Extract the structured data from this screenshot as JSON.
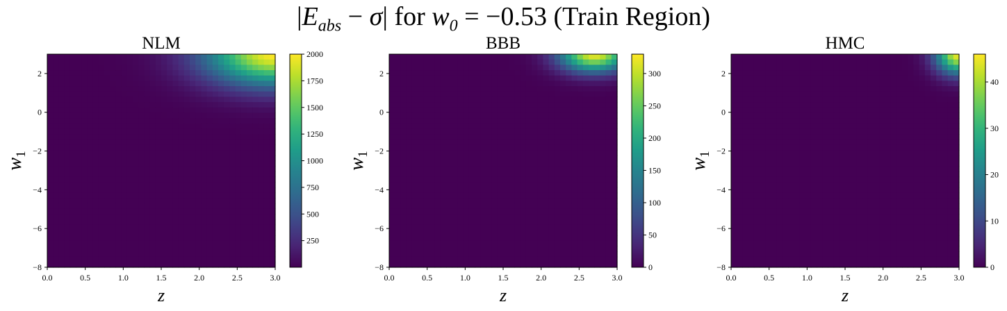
{
  "figure": {
    "title_parts": {
      "bar_left": "|",
      "e_symbol": "E",
      "e_subscript": "abs",
      "minus": " − ",
      "sigma": "σ",
      "bar_right": "|",
      "for_word": " for ",
      "w_symbol": "w",
      "w_subscript": "0",
      "equals_value": " = −0.53 (Train Region)"
    }
  },
  "colormap": "viridis",
  "chart_data": [
    {
      "type": "heatmap",
      "title": "NLM",
      "xlabel": "z",
      "ylabel": "w1",
      "xlim": [
        0.0,
        3.0
      ],
      "ylim": [
        -8,
        3
      ],
      "x_ticks": [
        "0.0",
        "0.5",
        "1.0",
        "1.5",
        "2.0",
        "2.5",
        "3.0"
      ],
      "y_ticks": [
        "−8",
        "−6",
        "−4",
        "−2",
        "0",
        "2"
      ],
      "colorbar": {
        "min": 0,
        "max": 2000,
        "ticks": [
          "250",
          "500",
          "750",
          "1000",
          "1250",
          "1500",
          "1750",
          "2000"
        ]
      },
      "hotspot": {
        "x": 3.0,
        "y": 3.0,
        "peak": 2000,
        "x_extent": 0.9,
        "y_extent": 1.6
      }
    },
    {
      "type": "heatmap",
      "title": "BBB",
      "xlabel": "z",
      "ylabel": "w1",
      "xlim": [
        0.0,
        3.0
      ],
      "ylim": [
        -8,
        3
      ],
      "x_ticks": [
        "0.0",
        "0.5",
        "1.0",
        "1.5",
        "2.0",
        "2.5",
        "3.0"
      ],
      "y_ticks": [
        "−8",
        "−6",
        "−4",
        "−2",
        "0",
        "2"
      ],
      "colorbar": {
        "min": 0,
        "max": 330,
        "ticks": [
          "0",
          "50",
          "100",
          "150",
          "200",
          "250",
          "300"
        ]
      },
      "hotspot": {
        "x": 2.7,
        "y": 3.0,
        "peak": 320,
        "x_extent": 0.45,
        "y_extent": 0.9
      }
    },
    {
      "type": "heatmap",
      "title": "HMC",
      "xlabel": "z",
      "ylabel": "w1",
      "xlim": [
        0.0,
        3.0
      ],
      "ylim": [
        -8,
        3
      ],
      "x_ticks": [
        "0.0",
        "0.5",
        "1.0",
        "1.5",
        "2.0",
        "2.5",
        "3.0"
      ],
      "y_ticks": [
        "−8",
        "−6",
        "−4",
        "−2",
        "0",
        "2"
      ],
      "colorbar": {
        "min": 0,
        "max": 46,
        "ticks": [
          "0",
          "10",
          "20",
          "30",
          "40"
        ]
      },
      "hotspot": {
        "x": 3.0,
        "y": 3.0,
        "peak": 45,
        "x_extent": 0.3,
        "y_extent": 1.0
      }
    }
  ]
}
